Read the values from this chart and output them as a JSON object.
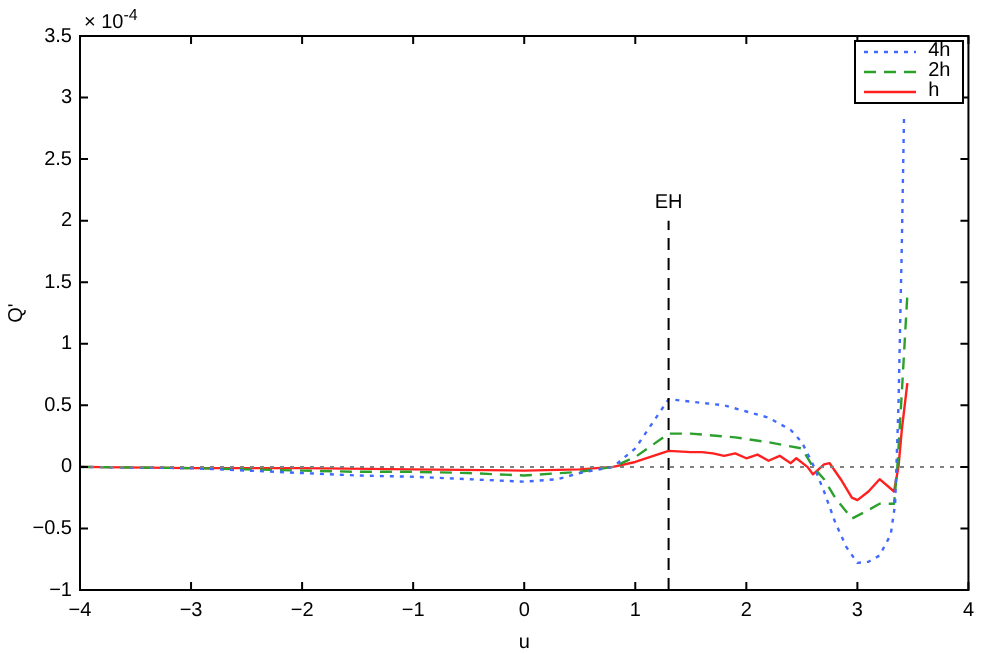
{
  "chart_data": {
    "type": "line",
    "xlabel": "u",
    "ylabel": "Q'",
    "annotations": [
      "× 10$^{-4}$"
    ],
    "xlim": [
      -4,
      4
    ],
    "xticks": [
      -4,
      -3,
      -2,
      -1,
      0,
      1,
      2,
      3,
      4
    ],
    "ylim": [
      -1,
      3.5
    ],
    "yticks": [
      -1,
      -0.5,
      0,
      0.5,
      1,
      1.5,
      2,
      2.5,
      3,
      3.5
    ],
    "grid": false,
    "legend": "top right",
    "marker": "none",
    "ref_lines": [
      {
        "axis": "x",
        "value": 1.3,
        "label": "EH",
        "color": "#000000",
        "line_style": "dashed"
      },
      {
        "axis": "y",
        "value": 0,
        "color": "#808080",
        "line_style": "dotted"
      }
    ],
    "series": [
      {
        "name": "4h",
        "color": "#4169ff",
        "line_style": "dotted",
        "x": [
          -4,
          -3,
          -2.5,
          -2,
          -1.5,
          -1,
          -0.5,
          0,
          0.3,
          0.5,
          0.8,
          1,
          1.3,
          1.5,
          1.8,
          2,
          2.2,
          2.4,
          2.5,
          2.6,
          2.7,
          2.8,
          2.9,
          3,
          3.1,
          3.2,
          3.3,
          3.34,
          3.37,
          3.4,
          3.42
        ],
        "values": [
          0,
          -0.01,
          -0.03,
          -0.05,
          -0.07,
          -0.08,
          -0.1,
          -0.12,
          -0.1,
          -0.05,
          0,
          0.15,
          0.55,
          0.53,
          0.5,
          0.45,
          0.4,
          0.3,
          0.2,
          0.02,
          -0.2,
          -0.45,
          -0.65,
          -0.78,
          -0.77,
          -0.72,
          -0.55,
          -0.3,
          0.5,
          1.8,
          2.85
        ]
      },
      {
        "name": "2h",
        "color": "#2ca02c",
        "line_style": "dashed",
        "x": [
          -4,
          -3,
          -2.5,
          -2,
          -1.5,
          -1,
          -0.5,
          0,
          0.5,
          0.8,
          1,
          1.3,
          1.5,
          1.9,
          2.2,
          2.5,
          2.6,
          2.7,
          2.8,
          2.95,
          3.1,
          3.2,
          3.33,
          3.36,
          3.4,
          3.45
        ],
        "values": [
          0,
          -0.01,
          -0.02,
          -0.03,
          -0.04,
          -0.04,
          -0.05,
          -0.07,
          -0.04,
          0,
          0.08,
          0.27,
          0.27,
          0.24,
          0.2,
          0.15,
          0.0,
          -0.1,
          -0.25,
          -0.42,
          -0.35,
          -0.3,
          -0.3,
          0.0,
          0.6,
          1.4
        ]
      },
      {
        "name": "h",
        "color": "#ff2020",
        "line_style": "solid",
        "x": [
          -4,
          -3,
          -2,
          -1,
          0,
          0.5,
          0.8,
          1,
          1.3,
          1.5,
          1.6,
          1.7,
          1.8,
          1.9,
          2.0,
          2.1,
          2.2,
          2.3,
          2.4,
          2.45,
          2.55,
          2.6,
          2.7,
          2.75,
          2.85,
          2.95,
          3.0,
          3.1,
          3.2,
          3.33,
          3.37,
          3.4,
          3.45
        ],
        "values": [
          0,
          -0.01,
          -0.01,
          -0.02,
          -0.03,
          -0.02,
          0,
          0.04,
          0.13,
          0.12,
          0.12,
          0.11,
          0.09,
          0.11,
          0.07,
          0.1,
          0.05,
          0.09,
          0.03,
          0.07,
          0.0,
          -0.06,
          0.02,
          0.03,
          -0.1,
          -0.25,
          -0.27,
          -0.2,
          -0.1,
          -0.2,
          0.0,
          0.3,
          0.68
        ]
      }
    ]
  }
}
